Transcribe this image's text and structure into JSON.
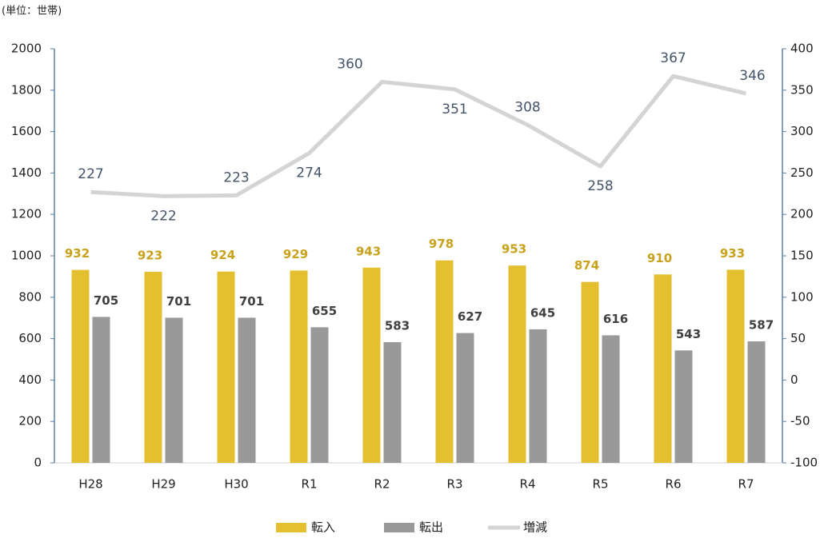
{
  "chart_data": {
    "type": "combo",
    "title": "(単位：世帯)",
    "categories": [
      "H28",
      "H29",
      "H30",
      "R1",
      "R2",
      "R3",
      "R4",
      "R5",
      "R6",
      "R7"
    ],
    "series": [
      {
        "name": "転入",
        "type": "bar",
        "color": "#e4c030",
        "label_color": "#c9a21b",
        "values": [
          932,
          923,
          924,
          929,
          943,
          978,
          953,
          874,
          910,
          933
        ]
      },
      {
        "name": "転出",
        "type": "bar",
        "color": "#999999",
        "label_color": "#404040",
        "values": [
          705,
          701,
          701,
          655,
          583,
          627,
          645,
          616,
          543,
          587
        ]
      },
      {
        "name": "増減",
        "type": "line",
        "axis": "y2",
        "color": "#d4d4d4",
        "label_color": "#44546a",
        "values": [
          227,
          222,
          223,
          274,
          360,
          351,
          308,
          258,
          367,
          346
        ]
      }
    ],
    "ylim": [
      0,
      2000
    ],
    "yticks": [
      0,
      200,
      400,
      600,
      800,
      1000,
      1200,
      1400,
      1600,
      1800,
      2000
    ],
    "y2lim": [
      -100,
      400
    ],
    "y2ticks": [
      -100,
      -50,
      0,
      50,
      100,
      150,
      200,
      250,
      300,
      350,
      400
    ],
    "legend": "bottom"
  }
}
